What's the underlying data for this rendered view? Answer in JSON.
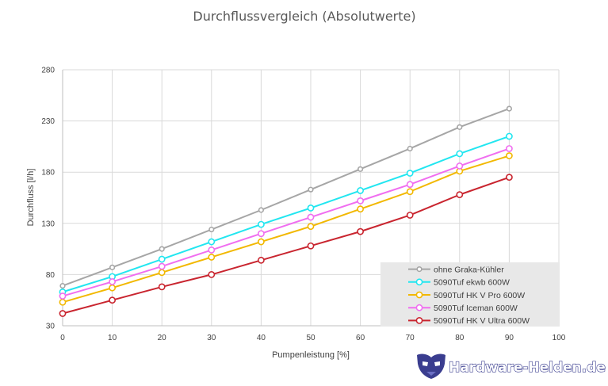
{
  "chart_data": {
    "type": "line",
    "title": "Durchflussvergleich (Absolutwerte)",
    "xlabel": "Pumpenleistung [%]",
    "ylabel": "Durchfluss [l/h]",
    "xlim": [
      0,
      100
    ],
    "ylim": [
      30,
      280
    ],
    "x_ticks": [
      0,
      10,
      20,
      30,
      40,
      50,
      60,
      70,
      80,
      90,
      100
    ],
    "y_ticks": [
      30,
      80,
      130,
      180,
      230,
      280
    ],
    "grid": "vertical and horizontal",
    "legend_position": "bottom-right",
    "x": [
      0,
      10,
      20,
      30,
      40,
      50,
      60,
      70,
      80,
      90
    ],
    "series": [
      {
        "name": "ohne Graka-Kühler",
        "color": "#a6a6a6",
        "marker": "small-open-circle",
        "values": [
          69,
          87,
          105,
          124,
          143,
          163,
          183,
          203,
          224,
          242
        ]
      },
      {
        "name": "5090Tuf ekwb 600W",
        "color": "#22e6f0",
        "marker": "open-circle",
        "values": [
          63,
          78,
          95,
          112,
          129,
          145,
          162,
          179,
          198,
          215
        ]
      },
      {
        "name": "5090Tuf HK V Pro 600W",
        "color": "#f2b800",
        "marker": "open-circle",
        "values": [
          53,
          67,
          82,
          97,
          112,
          127,
          144,
          161,
          181,
          196
        ]
      },
      {
        "name": "5090Tuf Iceman 600W",
        "color": "#f06ef0",
        "marker": "open-circle",
        "values": [
          59,
          73,
          88,
          104,
          120,
          136,
          152,
          168,
          186,
          203
        ]
      },
      {
        "name": "5090Tuf HK V Ultra 600W",
        "color": "#c9252f",
        "marker": "open-circle",
        "values": [
          42,
          55,
          68,
          80,
          94,
          108,
          122,
          138,
          158,
          175
        ]
      }
    ]
  },
  "watermark": {
    "text": "Hardware-Helden.de",
    "icon": "mask-icon"
  }
}
